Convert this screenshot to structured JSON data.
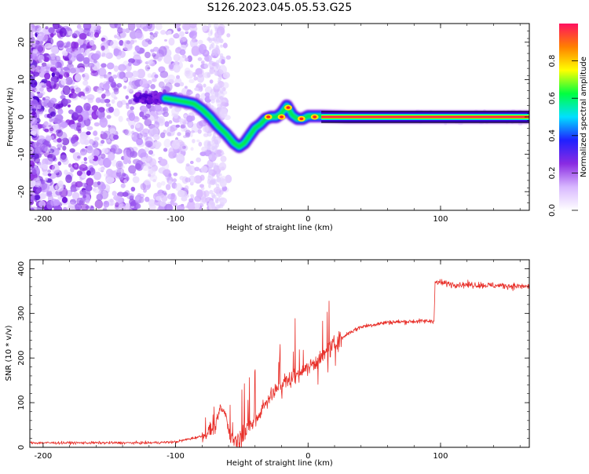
{
  "title": "S126.2023.045.05.53.G25",
  "chart_data": [
    {
      "type": "heatmap",
      "xlabel": "Height of straight line (km)",
      "ylabel": "Frequency (Hz)",
      "xlim": [
        -210,
        167
      ],
      "ylim": [
        -25,
        25
      ],
      "xticks": [
        -200,
        -100,
        0,
        100
      ],
      "yticks": [
        -20,
        -10,
        0,
        10,
        20
      ],
      "colorbar": {
        "label": "Normalized spectral amplitude",
        "range": [
          0,
          1
        ],
        "ticks": [
          0.0,
          0.2,
          0.4,
          0.6,
          0.8
        ],
        "tick_labels": [
          "0.0",
          "0.2",
          "0.4",
          "0.6",
          "0.8"
        ],
        "stops": [
          "#ffffff",
          "#d8b8ff",
          "#8a2be2",
          "#2020ff",
          "#00e0ff",
          "#00ff40",
          "#ffff00",
          "#ff8000",
          "#ff1060"
        ]
      },
      "ridge": {
        "x": [
          -108,
          -100,
          -92,
          -86,
          -80,
          -74,
          -68,
          -62,
          -56,
          -52,
          -48,
          -44,
          -40,
          -36,
          -32,
          -28,
          -24,
          -20,
          -16,
          -12,
          -8,
          -4,
          0,
          10,
          30,
          60,
          100,
          167
        ],
        "y": [
          5,
          4.5,
          4,
          3.5,
          2,
          0,
          -2.5,
          -4.5,
          -7,
          -8,
          -7,
          -5,
          -3,
          -2,
          -0.5,
          0,
          0,
          1,
          3,
          0.5,
          -0.5,
          -0.5,
          0.2,
          0.2,
          0,
          0,
          0,
          0
        ]
      }
    },
    {
      "type": "line",
      "xlabel": "Height of straight line (km)",
      "ylabel": "SNR (10 * v/v)",
      "xlim": [
        -210,
        167
      ],
      "ylim": [
        0,
        420
      ],
      "xticks": [
        -200,
        -100,
        0,
        100
      ],
      "yticks": [
        0,
        100,
        200,
        300,
        400
      ],
      "color": "#e8302a",
      "series_profile": {
        "x": [
          -210,
          -120,
          -100,
          -80,
          -70,
          -66,
          -62,
          -58,
          -54,
          -50,
          -40,
          -30,
          -20,
          -10,
          0,
          10,
          20,
          30,
          40,
          60,
          80,
          95,
          96,
          110,
          167
        ],
        "y": [
          10,
          10,
          12,
          25,
          45,
          90,
          70,
          20,
          15,
          20,
          60,
          110,
          140,
          160,
          180,
          200,
          230,
          255,
          270,
          280,
          282,
          283,
          370,
          365,
          360
        ]
      }
    }
  ]
}
